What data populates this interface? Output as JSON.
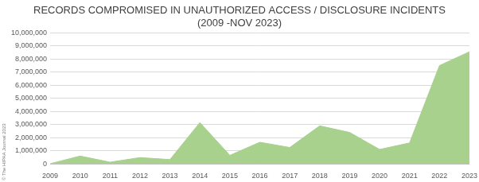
{
  "chart_data": {
    "type": "area",
    "title": "RECORDS COMPROMISED IN UNAUTHORIZED ACCESS / DISCLOSURE INCIDENTS",
    "subtitle": "(2009 -NOV 2023)",
    "annotations": [
      "© The HIPAA Journal 2023"
    ],
    "categories": [
      "2009",
      "2010",
      "2011",
      "2012",
      "2013",
      "2014",
      "2015",
      "2016",
      "2017",
      "2018",
      "2019",
      "2020",
      "2021",
      "2022",
      "2023"
    ],
    "values": [
      10000,
      600000,
      130000,
      480000,
      330000,
      3150000,
      650000,
      1650000,
      1250000,
      2900000,
      2400000,
      1100000,
      1600000,
      7500000,
      8550000
    ],
    "color": "#a9d18e",
    "ylim": [
      0,
      10000000
    ],
    "yticks": [
      0,
      {
        "value": 1000000,
        "label": "1,000,000"
      },
      {
        "value": 2000000,
        "label": "2,000,000"
      },
      {
        "value": 3000000,
        "label": "3,000,000"
      },
      {
        "value": 4000000,
        "label": "4,000,000"
      },
      {
        "value": 5000000,
        "label": "5,000,000"
      },
      {
        "value": 6000000,
        "label": "6,000,000"
      },
      {
        "value": 7000000,
        "label": "7,000,000"
      },
      {
        "value": 8000000,
        "label": "8,000,000"
      },
      {
        "value": 9000000,
        "label": "9,000,000"
      },
      {
        "value": 10000000,
        "label": "10,000,000"
      }
    ],
    "grid": true
  }
}
